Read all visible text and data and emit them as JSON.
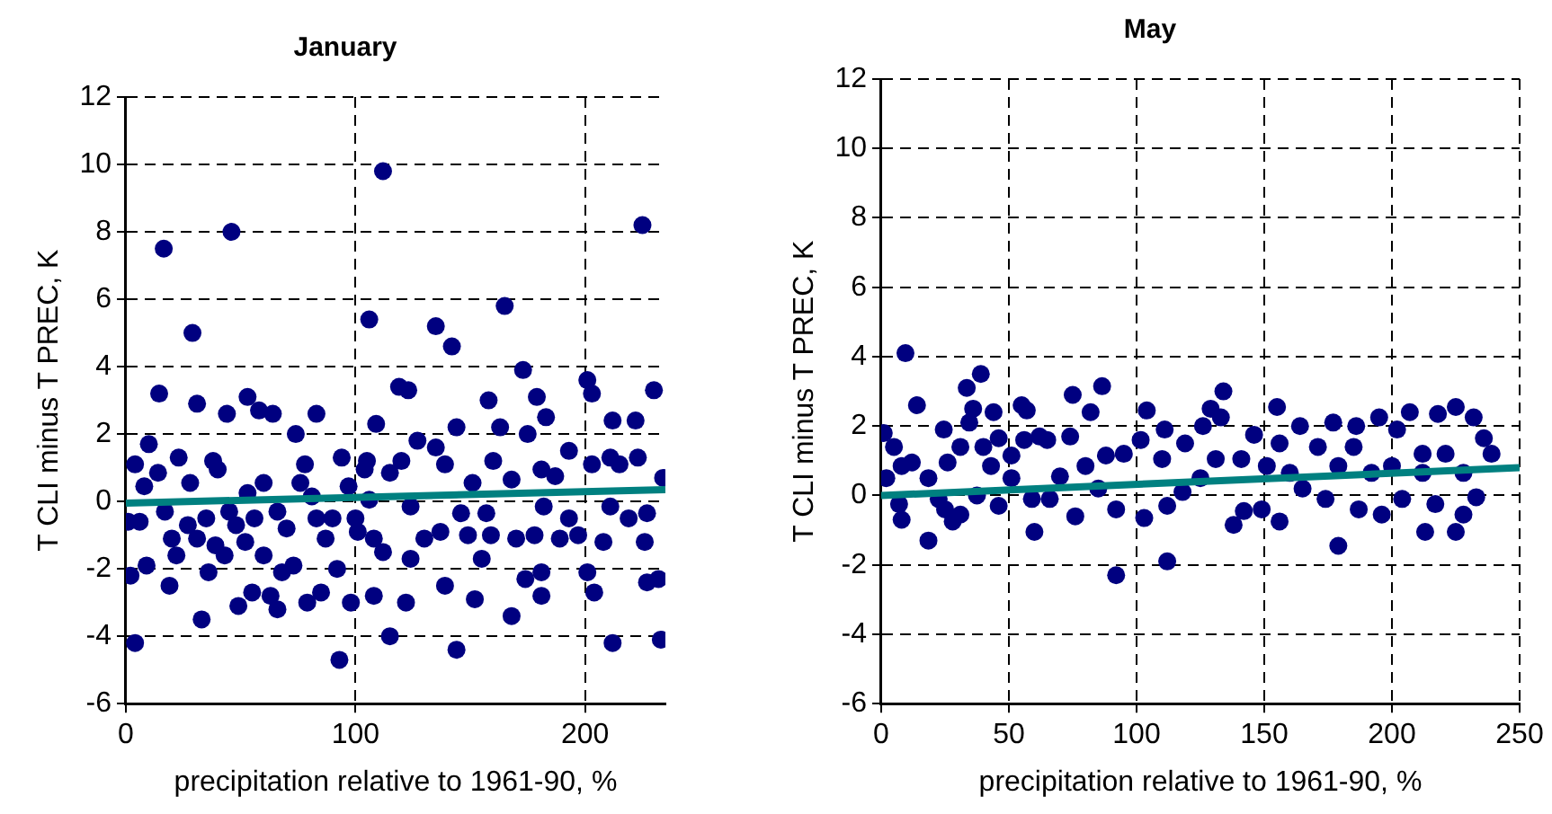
{
  "chart_data": [
    {
      "type": "scatter",
      "title": "January",
      "xlabel": "precipitation relative to 1961-90, %",
      "ylabel": "T CLI minus T PREC, K",
      "xlim": [
        0,
        235
      ],
      "xticks": [
        0,
        100,
        200
      ],
      "ylim": [
        -6,
        12
      ],
      "yticks": [
        -6,
        -4,
        -2,
        0,
        2,
        4,
        6,
        8,
        10,
        12
      ],
      "grid": true,
      "legend": false,
      "series": [
        {
          "type": "scatter",
          "marker": "circle",
          "color": "#000080",
          "x": [
            4,
            4,
            10,
            14.5,
            16.5,
            46,
            29,
            31,
            44,
            53,
            58,
            64,
            74,
            83,
            1,
            6,
            2,
            9,
            19,
            33,
            36,
            49,
            55,
            63,
            66,
            68,
            73,
            79,
            85,
            92,
            93,
            98,
            8,
            14,
            23,
            28,
            38,
            40,
            17,
            20,
            22,
            27,
            31,
            35,
            39,
            43,
            45,
            48,
            52,
            56,
            60,
            53,
            60,
            66,
            70,
            76,
            78,
            81,
            83,
            87,
            90,
            94,
            97,
            100,
            101,
            104,
            105,
            106,
            109,
            112,
            106,
            108,
            108,
            135,
            142,
            165,
            225,
            173,
            179,
            183,
            158,
            119,
            123,
            201,
            203,
            230,
            212,
            222,
            144,
            163,
            175,
            127,
            135,
            160,
            193,
            211,
            223,
            120,
            139,
            151,
            181,
            203,
            215,
            115,
            168,
            187,
            124,
            146,
            157,
            182,
            193,
            211,
            227,
            112,
            124,
            130,
            137,
            149,
            155,
            159,
            170,
            178,
            189,
            197,
            208,
            219,
            226,
            174,
            181,
            201,
            122,
            139,
            152,
            181,
            204,
            227,
            168,
            115,
            144,
            212,
            233,
            234,
            232
          ],
          "values": [
            -4.2,
            1.1,
            1.7,
            3.2,
            7.5,
            8.0,
            5.0,
            2.9,
            2.6,
            3.1,
            2.7,
            2.6,
            2.0,
            2.6,
            -0.6,
            -0.6,
            -2.2,
            -1.9,
            -2.5,
            -3.5,
            -2.1,
            -3.1,
            -2.7,
            -2.8,
            -3.2,
            -2.1,
            -1.9,
            -3.0,
            -2.7,
            -2.0,
            -4.7,
            -3.0,
            0.45,
            0.85,
            1.3,
            0.55,
            1.2,
            0.95,
            -0.3,
            -1.1,
            -1.6,
            -0.7,
            -1.1,
            -0.5,
            -1.3,
            -1.6,
            -0.3,
            -0.7,
            -1.2,
            -0.5,
            -1.6,
            0.25,
            0.55,
            -0.3,
            -0.8,
            0.55,
            1.1,
            0.15,
            -0.5,
            -1.1,
            -0.5,
            1.3,
            0.45,
            -0.5,
            -0.9,
            0.95,
            1.2,
            0.05,
            2.3,
            9.8,
            5.4,
            -1.1,
            -2.8,
            5.2,
            4.6,
            5.8,
            8.2,
            3.9,
            3.1,
            2.5,
            3.0,
            3.4,
            3.3,
            3.6,
            3.2,
            3.3,
            2.4,
            2.4,
            2.2,
            2.2,
            2.0,
            1.8,
            1.6,
            1.2,
            1.5,
            1.3,
            1.3,
            1.2,
            1.1,
            0.55,
            0.95,
            1.1,
            1.1,
            0.85,
            0.65,
            0.75,
            -0.15,
            -0.35,
            -0.35,
            -0.15,
            -0.5,
            -0.15,
            -0.35,
            -1.5,
            -1.7,
            -1.1,
            -0.9,
            -1.0,
            -1.7,
            -1.0,
            -1.1,
            -1.0,
            -1.1,
            -1.0,
            -1.2,
            -0.5,
            -1.2,
            -2.3,
            -2.1,
            -2.1,
            -3.0,
            -2.5,
            -2.9,
            -2.8,
            -2.7,
            -2.4,
            -3.4,
            -4.0,
            -4.4,
            -4.2,
            -4.1,
            0.7,
            -2.3
          ]
        },
        {
          "type": "line",
          "marker": "none",
          "color": "#008080",
          "x": [
            0,
            235
          ],
          "values": [
            -0.05,
            0.35
          ]
        }
      ]
    },
    {
      "type": "scatter",
      "title": "May",
      "xlabel": "precipitation relative to 1961-90, %",
      "ylabel": "T CLI minus T PREC, K",
      "xlim": [
        0,
        250
      ],
      "xticks": [
        0,
        50,
        100,
        150,
        200,
        250
      ],
      "ylim": [
        -6,
        12
      ],
      "yticks": [
        -6,
        -4,
        -2,
        0,
        2,
        4,
        6,
        8,
        10,
        12
      ],
      "grid": true,
      "legend": false,
      "series": [
        {
          "type": "scatter",
          "marker": "circle",
          "color": "#000080",
          "x": [
            1,
            9.5,
            14,
            2,
            5,
            8,
            12,
            7,
            8,
            18.5,
            24.5,
            33.5,
            39,
            36,
            34.5,
            44,
            31,
            26,
            18.5,
            22.5,
            25,
            28,
            31,
            37.5,
            46,
            40,
            46,
            51,
            55,
            57,
            56,
            62,
            65,
            59,
            60,
            66,
            70,
            75,
            74,
            76,
            82,
            86.5,
            80,
            88,
            92,
            92,
            85,
            51,
            43,
            104,
            111,
            101.6,
            95,
            110,
            119,
            126,
            129,
            134,
            133,
            131,
            125,
            118,
            112,
            103,
            112,
            138,
            142,
            149,
            156,
            155,
            146,
            156,
            164,
            171,
            141,
            160,
            165,
            174,
            179,
            177,
            186,
            185,
            195,
            202,
            207,
            187,
            196,
            204,
            192,
            212,
            217,
            213,
            218,
            225,
            232,
            236,
            239,
            221,
            228,
            233,
            228,
            225,
            212,
            200,
            179,
            151
          ],
          "values": [
            1.8,
            4.1,
            2.6,
            0.5,
            1.4,
            0.85,
            0.95,
            -0.25,
            -0.7,
            -1.3,
            1.9,
            3.1,
            3.5,
            2.5,
            2.1,
            2.4,
            1.4,
            0.95,
            0.5,
            -0.1,
            -0.4,
            -0.75,
            -0.55,
            0.0,
            -0.3,
            1.4,
            1.65,
            1.15,
            2.6,
            2.45,
            1.6,
            1.7,
            1.6,
            -0.1,
            -1.05,
            -0.1,
            0.55,
            2.9,
            1.7,
            -0.6,
            2.4,
            3.15,
            0.85,
            1.15,
            -2.3,
            -0.4,
            0.2,
            0.5,
            0.85,
            2.45,
            1.9,
            1.6,
            1.2,
            1.05,
            1.5,
            2.0,
            2.5,
            3.0,
            2.25,
            1.05,
            0.5,
            0.1,
            -0.3,
            -0.65,
            -1.9,
            -0.85,
            -0.45,
            -0.4,
            -0.75,
            2.55,
            1.75,
            1.5,
            2.0,
            1.4,
            1.05,
            0.65,
            0.2,
            -0.1,
            -1.45,
            2.1,
            2.0,
            1.4,
            2.25,
            1.9,
            2.4,
            -0.4,
            -0.55,
            -0.1,
            0.65,
            1.2,
            -0.25,
            -1.05,
            2.35,
            2.55,
            2.25,
            1.65,
            1.2,
            1.2,
            0.65,
            -0.05,
            -0.55,
            -1.05,
            0.65,
            0.85,
            0.85,
            0.85
          ]
        },
        {
          "type": "line",
          "marker": "none",
          "color": "#008080",
          "x": [
            0,
            250
          ],
          "values": [
            0,
            0.8
          ]
        }
      ]
    }
  ]
}
